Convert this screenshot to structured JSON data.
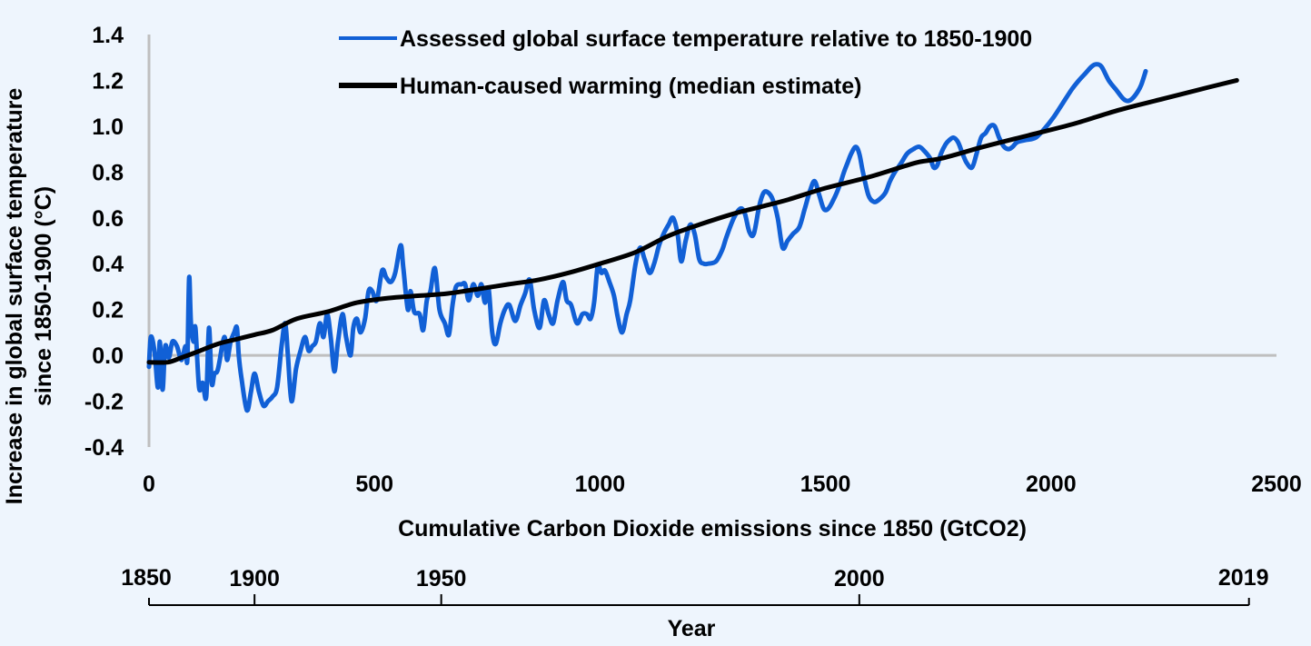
{
  "chart_data": {
    "type": "line",
    "title": "",
    "xlabel": "Cumulative Carbon Dioxide emissions since 1850 (GtCO2)",
    "ylabel_lines": [
      "Increase in global surface temperature",
      "since 1850-1900 (°C)"
    ],
    "xlim": [
      0,
      2500
    ],
    "ylim": [
      -0.4,
      1.4
    ],
    "x_ticks": [
      0,
      500,
      1000,
      1500,
      2000,
      2500
    ],
    "x_tick_labels": [
      "0",
      "500",
      "1000",
      "1500",
      "2000",
      "2500"
    ],
    "y_ticks": [
      1.4,
      1.2,
      1.0,
      0.8,
      0.6,
      0.4,
      0.2,
      0.0,
      -0.2,
      -0.4
    ],
    "y_tick_labels": [
      "1.4",
      "1.2",
      "1.0",
      "0.8",
      "0.6",
      "0.4",
      "0.2",
      "0.0",
      "-0.2",
      "-0.4"
    ],
    "grid": false,
    "zero_line": true,
    "legend": {
      "placement": "top-center",
      "entries": [
        {
          "label": "Assessed global surface temperature relative to 1850-1900",
          "color": "#1160d6"
        },
        {
          "label": "Human-caused warming (median estimate)",
          "color": "#000000"
        }
      ]
    },
    "secondary_axis": {
      "title": "Year",
      "ticks": [
        {
          "label": "1850",
          "emissions": 0
        },
        {
          "label": "1900",
          "emissions": 234
        },
        {
          "label": "1950",
          "emissions": 648
        },
        {
          "label": "2000",
          "emissions": 1575
        },
        {
          "label": "2019",
          "emissions": 2439
        }
      ]
    },
    "series": [
      {
        "name": "Assessed global surface temperature relative to 1850-1900",
        "color": "#1160d6",
        "points": [
          [
            0,
            -0.05
          ],
          [
            4,
            0.08
          ],
          [
            12,
            0.02
          ],
          [
            20,
            -0.14
          ],
          [
            24,
            0.06
          ],
          [
            30,
            -0.15
          ],
          [
            36,
            0.04
          ],
          [
            44,
            -0.01
          ],
          [
            52,
            0.06
          ],
          [
            62,
            0.04
          ],
          [
            72,
            -0.02
          ],
          [
            81,
            0.04
          ],
          [
            85,
            -0.02
          ],
          [
            89,
            0.34
          ],
          [
            93,
            0.14
          ],
          [
            99,
            0.06
          ],
          [
            103,
            0.12
          ],
          [
            111,
            -0.14
          ],
          [
            119,
            -0.12
          ],
          [
            127,
            -0.18
          ],
          [
            133,
            0.12
          ],
          [
            139,
            -0.12
          ],
          [
            145,
            -0.08
          ],
          [
            153,
            -0.06
          ],
          [
            167,
            0.08
          ],
          [
            173,
            -0.02
          ],
          [
            181,
            0.06
          ],
          [
            189,
            0.1
          ],
          [
            195,
            0.12
          ],
          [
            199,
            0.0
          ],
          [
            205,
            -0.1
          ],
          [
            217,
            -0.24
          ],
          [
            226,
            -0.16
          ],
          [
            234,
            -0.08
          ],
          [
            244,
            -0.16
          ],
          [
            254,
            -0.22
          ],
          [
            264,
            -0.2
          ],
          [
            274,
            -0.18
          ],
          [
            284,
            -0.14
          ],
          [
            294,
            0.04
          ],
          [
            302,
            0.14
          ],
          [
            308,
            0.0
          ],
          [
            316,
            -0.2
          ],
          [
            326,
            -0.06
          ],
          [
            336,
            0.02
          ],
          [
            346,
            0.08
          ],
          [
            354,
            0.02
          ],
          [
            362,
            0.04
          ],
          [
            370,
            0.06
          ],
          [
            379,
            0.14
          ],
          [
            387,
            0.08
          ],
          [
            395,
            0.18
          ],
          [
            403,
            0.08
          ],
          [
            411,
            -0.07
          ],
          [
            419,
            0.06
          ],
          [
            429,
            0.18
          ],
          [
            437,
            0.08
          ],
          [
            447,
            0.0
          ],
          [
            453,
            0.12
          ],
          [
            461,
            0.16
          ],
          [
            469,
            0.1
          ],
          [
            479,
            0.16
          ],
          [
            487,
            0.28
          ],
          [
            495,
            0.28
          ],
          [
            505,
            0.24
          ],
          [
            517,
            0.37
          ],
          [
            526,
            0.34
          ],
          [
            536,
            0.32
          ],
          [
            546,
            0.36
          ],
          [
            558,
            0.48
          ],
          [
            564,
            0.38
          ],
          [
            574,
            0.2
          ],
          [
            580,
            0.28
          ],
          [
            588,
            0.19
          ],
          [
            600,
            0.18
          ],
          [
            608,
            0.11
          ],
          [
            616,
            0.24
          ],
          [
            624,
            0.28
          ],
          [
            634,
            0.38
          ],
          [
            644,
            0.2
          ],
          [
            656,
            0.14
          ],
          [
            665,
            0.09
          ],
          [
            673,
            0.22
          ],
          [
            681,
            0.3
          ],
          [
            693,
            0.31
          ],
          [
            701,
            0.31
          ],
          [
            709,
            0.24
          ],
          [
            719,
            0.31
          ],
          [
            729,
            0.26
          ],
          [
            737,
            0.31
          ],
          [
            745,
            0.23
          ],
          [
            753,
            0.29
          ],
          [
            761,
            0.1
          ],
          [
            769,
            0.05
          ],
          [
            779,
            0.14
          ],
          [
            789,
            0.2
          ],
          [
            799,
            0.22
          ],
          [
            812,
            0.15
          ],
          [
            824,
            0.22
          ],
          [
            834,
            0.27
          ],
          [
            844,
            0.33
          ],
          [
            854,
            0.2
          ],
          [
            866,
            0.12
          ],
          [
            876,
            0.24
          ],
          [
            886,
            0.18
          ],
          [
            896,
            0.14
          ],
          [
            906,
            0.24
          ],
          [
            918,
            0.32
          ],
          [
            926,
            0.24
          ],
          [
            936,
            0.22
          ],
          [
            949,
            0.14
          ],
          [
            961,
            0.18
          ],
          [
            971,
            0.18
          ],
          [
            979,
            0.16
          ],
          [
            987,
            0.23
          ],
          [
            995,
            0.39
          ],
          [
            1003,
            0.36
          ],
          [
            1011,
            0.37
          ],
          [
            1021,
            0.32
          ],
          [
            1031,
            0.26
          ],
          [
            1039,
            0.17
          ],
          [
            1049,
            0.1
          ],
          [
            1059,
            0.18
          ],
          [
            1067,
            0.24
          ],
          [
            1079,
            0.4
          ],
          [
            1089,
            0.47
          ],
          [
            1099,
            0.42
          ],
          [
            1110,
            0.36
          ],
          [
            1120,
            0.4
          ],
          [
            1131,
            0.48
          ],
          [
            1141,
            0.53
          ],
          [
            1152,
            0.57
          ],
          [
            1162,
            0.6
          ],
          [
            1172,
            0.53
          ],
          [
            1180,
            0.41
          ],
          [
            1190,
            0.5
          ],
          [
            1200,
            0.57
          ],
          [
            1210,
            0.53
          ],
          [
            1220,
            0.42
          ],
          [
            1230,
            0.4
          ],
          [
            1240,
            0.4
          ],
          [
            1257,
            0.41
          ],
          [
            1271,
            0.46
          ],
          [
            1281,
            0.52
          ],
          [
            1297,
            0.6
          ],
          [
            1311,
            0.64
          ],
          [
            1321,
            0.62
          ],
          [
            1331,
            0.54
          ],
          [
            1341,
            0.53
          ],
          [
            1353,
            0.65
          ],
          [
            1363,
            0.71
          ],
          [
            1373,
            0.71
          ],
          [
            1383,
            0.68
          ],
          [
            1394,
            0.6
          ],
          [
            1405,
            0.47
          ],
          [
            1416,
            0.5
          ],
          [
            1428,
            0.53
          ],
          [
            1442,
            0.56
          ],
          [
            1454,
            0.64
          ],
          [
            1466,
            0.72
          ],
          [
            1476,
            0.76
          ],
          [
            1486,
            0.7
          ],
          [
            1496,
            0.64
          ],
          [
            1506,
            0.64
          ],
          [
            1518,
            0.68
          ],
          [
            1531,
            0.74
          ],
          [
            1541,
            0.8
          ],
          [
            1549,
            0.84
          ],
          [
            1557,
            0.88
          ],
          [
            1567,
            0.91
          ],
          [
            1575,
            0.88
          ],
          [
            1583,
            0.8
          ],
          [
            1595,
            0.7
          ],
          [
            1607,
            0.67
          ],
          [
            1619,
            0.68
          ],
          [
            1633,
            0.71
          ],
          [
            1643,
            0.76
          ],
          [
            1654,
            0.8
          ],
          [
            1668,
            0.84
          ],
          [
            1681,
            0.88
          ],
          [
            1695,
            0.9
          ],
          [
            1708,
            0.91
          ],
          [
            1720,
            0.89
          ],
          [
            1732,
            0.86
          ],
          [
            1740,
            0.82
          ],
          [
            1748,
            0.83
          ],
          [
            1756,
            0.88
          ],
          [
            1766,
            0.92
          ],
          [
            1775,
            0.94
          ],
          [
            1784,
            0.95
          ],
          [
            1794,
            0.93
          ],
          [
            1804,
            0.88
          ],
          [
            1813,
            0.84
          ],
          [
            1825,
            0.82
          ],
          [
            1835,
            0.88
          ],
          [
            1845,
            0.95
          ],
          [
            1855,
            0.97
          ],
          [
            1865,
            1.0
          ],
          [
            1875,
            1.0
          ],
          [
            1885,
            0.95
          ],
          [
            1896,
            0.91
          ],
          [
            1906,
            0.9
          ],
          [
            1915,
            0.91
          ],
          [
            1925,
            0.93
          ],
          [
            1945,
            0.94
          ],
          [
            1966,
            0.95
          ],
          [
            1986,
            0.99
          ],
          [
            2006,
            1.04
          ],
          [
            2026,
            1.1
          ],
          [
            2046,
            1.16
          ],
          [
            2062,
            1.2
          ],
          [
            2076,
            1.23
          ],
          [
            2090,
            1.26
          ],
          [
            2100,
            1.27
          ],
          [
            2112,
            1.26
          ],
          [
            2128,
            1.2
          ],
          [
            2144,
            1.16
          ],
          [
            2160,
            1.12
          ],
          [
            2170,
            1.11
          ],
          [
            2180,
            1.12
          ],
          [
            2192,
            1.15
          ],
          [
            2200,
            1.18
          ],
          [
            2210,
            1.24
          ]
        ]
      },
      {
        "name": "Human-caused warming (median estimate)",
        "color": "#000000",
        "points": [
          [
            0,
            -0.03
          ],
          [
            42,
            -0.03
          ],
          [
            72,
            -0.01
          ],
          [
            113,
            0.02
          ],
          [
            153,
            0.05
          ],
          [
            193,
            0.07
          ],
          [
            234,
            0.09
          ],
          [
            274,
            0.11
          ],
          [
            328,
            0.16
          ],
          [
            395,
            0.19
          ],
          [
            461,
            0.23
          ],
          [
            530,
            0.25
          ],
          [
            596,
            0.26
          ],
          [
            663,
            0.27
          ],
          [
            731,
            0.29
          ],
          [
            797,
            0.31
          ],
          [
            864,
            0.33
          ],
          [
            930,
            0.36
          ],
          [
            1000,
            0.4
          ],
          [
            1079,
            0.45
          ],
          [
            1150,
            0.52
          ],
          [
            1220,
            0.57
          ],
          [
            1300,
            0.62
          ],
          [
            1360,
            0.65
          ],
          [
            1418,
            0.68
          ],
          [
            1500,
            0.73
          ],
          [
            1600,
            0.78
          ],
          [
            1700,
            0.84
          ],
          [
            1758,
            0.86
          ],
          [
            1850,
            0.91
          ],
          [
            1950,
            0.96
          ],
          [
            2050,
            1.01
          ],
          [
            2150,
            1.07
          ],
          [
            2250,
            1.12
          ],
          [
            2350,
            1.17
          ],
          [
            2412,
            1.2
          ]
        ]
      }
    ]
  }
}
